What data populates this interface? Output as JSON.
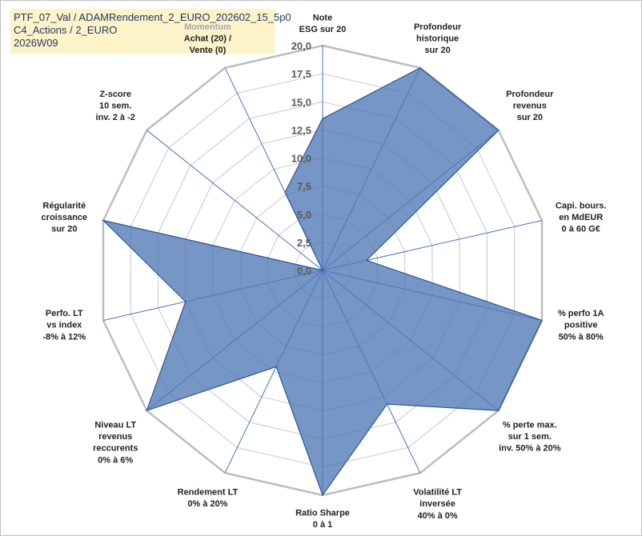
{
  "title_lines": [
    "PTF_07_Val / ADAMRendement_2_EURO_202602_15_5p0",
    "C4_Actions / 2_EURO",
    "2026W09"
  ],
  "chart_data": {
    "type": "radar",
    "title": "PTF_07_Val / ADAMRendement_2_EURO_202602_15_5p0 C4_Actions / 2_EURO 2026W09",
    "rmin": 0,
    "rmax": 20,
    "tick_values": [
      0,
      2.5,
      5,
      7.5,
      10,
      12.5,
      15,
      17.5,
      20
    ],
    "tick_labels": [
      "0,0",
      "2,5",
      "5,0",
      "7,5",
      "10,0",
      "12,5",
      "15,0",
      "17,5",
      "20,0"
    ],
    "grid": true,
    "axes": [
      {
        "lines": [
          "Note",
          "ESG sur 20"
        ],
        "value": 13.5
      },
      {
        "lines": [
          "Profondeur",
          "historique",
          "sur 20"
        ],
        "value": 20
      },
      {
        "lines": [
          "Profondeur",
          "revenus",
          "sur 20"
        ],
        "value": 20
      },
      {
        "lines": [
          "Capi. bours.",
          "en MdEUR",
          "0 à 60 G€"
        ],
        "value": 4
      },
      {
        "lines": [
          "% perfo 1A",
          "positive",
          "50% à 80%"
        ],
        "value": 20
      },
      {
        "lines": [
          "% perte max.",
          "sur 1 sem.",
          "inv. 50% à 20%"
        ],
        "value": 20
      },
      {
        "lines": [
          "Volatilité LT",
          "inversée",
          "40% à 0%"
        ],
        "value": 13.2
      },
      {
        "lines": [
          "Ratio Sharpe",
          "0 à 1"
        ],
        "value": 20
      },
      {
        "lines": [
          "Rendement LT",
          "0% à 20%"
        ],
        "value": 9.5
      },
      {
        "lines": [
          "Niveau LT",
          "revenus",
          "reccurents",
          "0% à 6%"
        ],
        "value": 20
      },
      {
        "lines": [
          "Perfo. LT",
          "vs index",
          "-8% à 12%"
        ],
        "value": 12.5
      },
      {
        "lines": [
          "Régularité",
          "croissance",
          "sur 20"
        ],
        "value": 20
      },
      {
        "lines": [
          "Z-score",
          "10 sem.",
          "inv. 2 à -2"
        ],
        "value": 0
      },
      {
        "lines": [
          "Momentum",
          "Achat (20) /",
          "Vente (0)"
        ],
        "value": 7.7,
        "first_line_gray": true
      }
    ],
    "series": [
      {
        "name": "PTF_07_Val",
        "color": "#4f78b5"
      }
    ]
  }
}
